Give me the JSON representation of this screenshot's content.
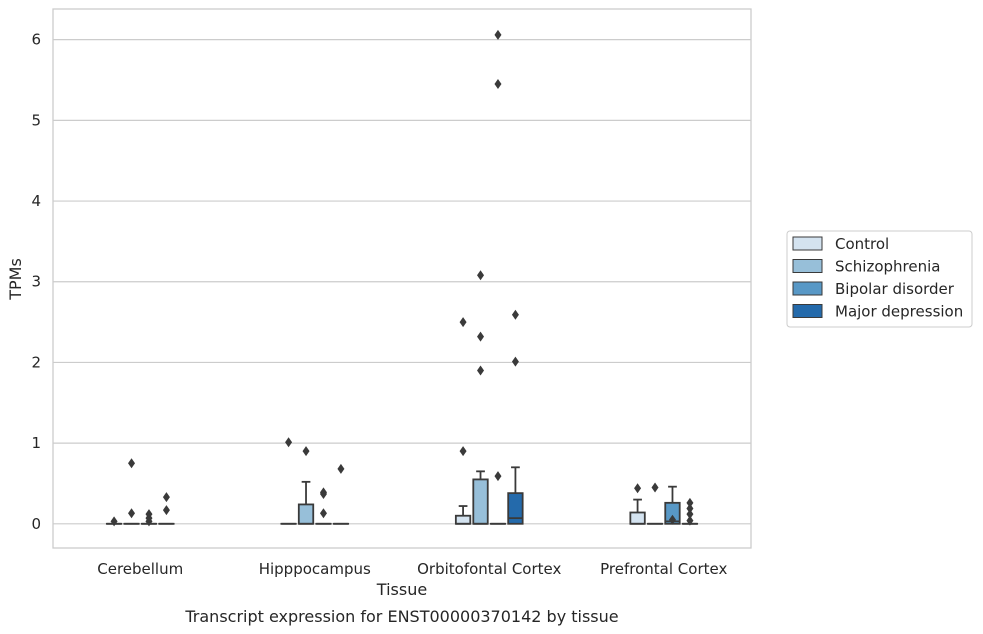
{
  "chart_data": {
    "type": "box",
    "xlabel": "Tissue",
    "ylabel": "TPMs",
    "caption": "Transcript expression for ENST00000370142 by tissue",
    "ylim": [
      -0.3,
      6.38
    ],
    "yticks": [
      0,
      1,
      2,
      3,
      4,
      5,
      6
    ],
    "grid": "horizontal",
    "legend_position": "right",
    "categories": [
      "Cerebellum",
      "Hipppocampus",
      "Orbitofontal Cortex",
      "Prefrontal Cortex"
    ],
    "series": [
      {
        "name": "Control",
        "color": "#d4e3f0",
        "boxes": [
          {
            "q1": 0,
            "median": 0,
            "q3": 0,
            "whisker_low": 0,
            "whisker_high": 0,
            "outliers": [
              0.03
            ]
          },
          {
            "q1": 0,
            "median": 0,
            "q3": 0,
            "whisker_low": 0,
            "whisker_high": 0,
            "outliers": [
              1.01
            ]
          },
          {
            "q1": 0,
            "median": 0,
            "q3": 0.1,
            "whisker_low": 0,
            "whisker_high": 0.22,
            "outliers": [
              0.9,
              2.5
            ]
          },
          {
            "q1": 0,
            "median": 0,
            "q3": 0.14,
            "whisker_low": 0,
            "whisker_high": 0.3,
            "outliers": [
              0.44
            ]
          }
        ]
      },
      {
        "name": "Schizophrenia",
        "color": "#97bfd9",
        "boxes": [
          {
            "q1": 0,
            "median": 0,
            "q3": 0,
            "whisker_low": 0,
            "whisker_high": 0,
            "outliers": [
              0.13,
              0.75
            ]
          },
          {
            "q1": 0,
            "median": 0,
            "q3": 0.24,
            "whisker_low": 0,
            "whisker_high": 0.52,
            "outliers": [
              0.9
            ]
          },
          {
            "q1": 0,
            "median": 0,
            "q3": 0.55,
            "whisker_low": 0,
            "whisker_high": 0.65,
            "outliers": [
              1.9,
              2.32,
              3.08
            ]
          },
          {
            "q1": 0,
            "median": 0,
            "q3": 0,
            "whisker_low": 0,
            "whisker_high": 0,
            "outliers": [
              0.45
            ]
          }
        ]
      },
      {
        "name": "Bipolar disorder",
        "color": "#5898c6",
        "boxes": [
          {
            "q1": 0,
            "median": 0,
            "q3": 0,
            "whisker_low": 0,
            "whisker_high": 0,
            "outliers": [
              0.03,
              0.07,
              0.12
            ]
          },
          {
            "q1": 0,
            "median": 0,
            "q3": 0,
            "whisker_low": 0,
            "whisker_high": 0,
            "outliers": [
              0.13,
              0.37,
              0.39
            ]
          },
          {
            "q1": 0,
            "median": 0,
            "q3": 0,
            "whisker_low": 0,
            "whisker_high": 0,
            "outliers": [
              0.59,
              5.45,
              6.06
            ]
          },
          {
            "q1": 0,
            "median": 0.03,
            "q3": 0.26,
            "whisker_low": 0,
            "whisker_high": 0.46,
            "outliers": [
              0.05
            ]
          }
        ]
      },
      {
        "name": "Major depression",
        "color": "#246aab",
        "boxes": [
          {
            "q1": 0,
            "median": 0,
            "q3": 0,
            "whisker_low": 0,
            "whisker_high": 0,
            "outliers": [
              0.17,
              0.33
            ]
          },
          {
            "q1": 0,
            "median": 0,
            "q3": 0,
            "whisker_low": 0,
            "whisker_high": 0,
            "outliers": [
              0.68
            ]
          },
          {
            "q1": 0,
            "median": 0.07,
            "q3": 0.38,
            "whisker_low": 0,
            "whisker_high": 0.7,
            "outliers": [
              2.01,
              2.59
            ]
          },
          {
            "q1": 0,
            "median": 0,
            "q3": 0,
            "whisker_low": 0,
            "whisker_high": 0,
            "outliers": [
              0.04,
              0.12,
              0.19,
              0.26
            ]
          }
        ]
      }
    ]
  }
}
